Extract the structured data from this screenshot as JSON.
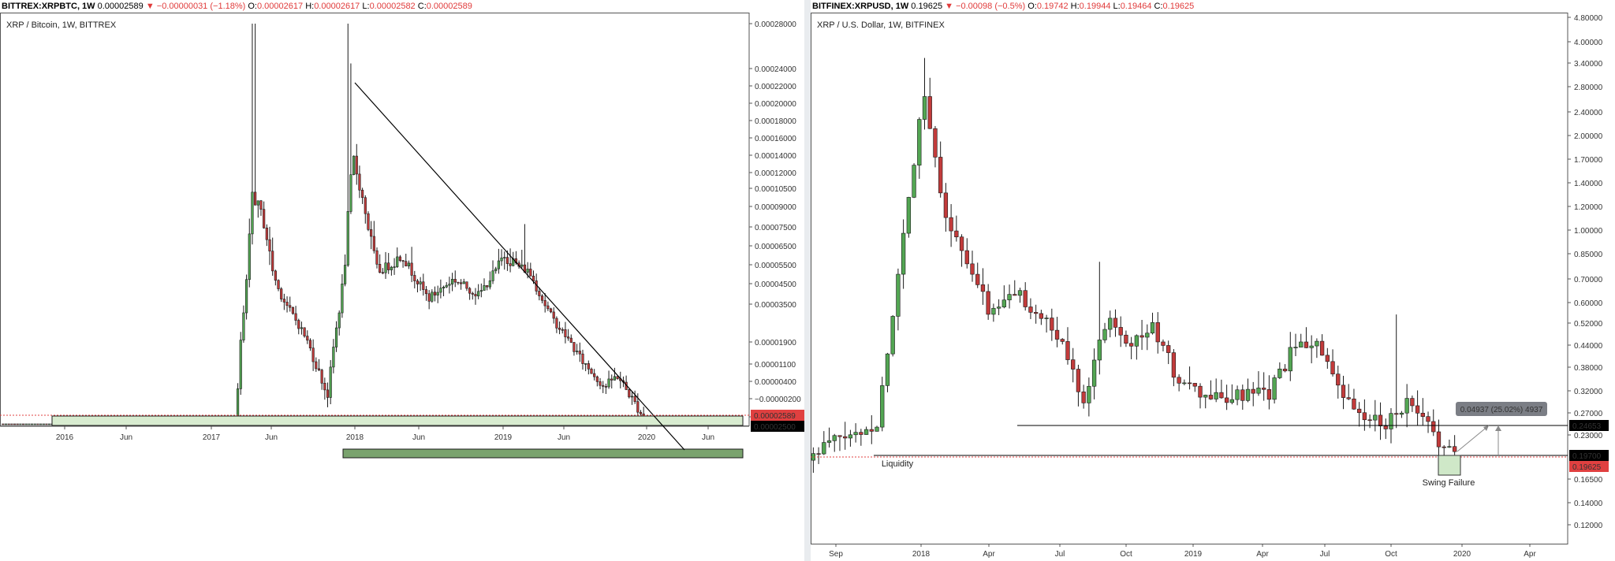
{
  "charts": [
    {
      "header": {
        "symbol": "BITTREX:XRPBTC, 1W",
        "last": "0.00002589",
        "arrow": "▼",
        "change": "−0.00000031 (−1.18%)",
        "o_label": "O:",
        "o": "0.00002617",
        "h_label": "H:",
        "h": "0.00002617",
        "l_label": "L:",
        "l": "0.00002582",
        "c_label": "C:",
        "c": "0.00002589"
      },
      "subtitle": "XRP / Bitcoin, 1W, BITTREX",
      "price_labels": [
        {
          "text": "0.00002589",
          "value": 2.589e-05,
          "color": "#e04040"
        },
        {
          "text": "0.00002500",
          "value": 2.5e-05,
          "color": "#000000"
        }
      ]
    },
    {
      "header": {
        "symbol": "BITFINEX:XRPUSD, 1W",
        "last": "0.19625",
        "arrow": "▼",
        "change": "−0.00098 (−0.5%)",
        "o_label": "O:",
        "o": "0.19742",
        "h_label": "H:",
        "h": "0.19944",
        "l_label": "L:",
        "l": "0.19464",
        "c_label": "C:",
        "c": "0.19625"
      },
      "subtitle": "XRP / U.S. Dollar, 1W, BITFINEX",
      "price_labels": [
        {
          "text": "0.24653",
          "value": 0.24653,
          "color": "#000000"
        },
        {
          "text": "0.19700",
          "value": 0.197,
          "color": "#000000"
        },
        {
          "text": "0.19625",
          "value": 0.19625,
          "color": "#e04040"
        }
      ],
      "annotations": {
        "liquidity": "Liquidity",
        "swing_failure": "Swing Failure",
        "measure": "0.04937 (25.02%) 4937"
      }
    }
  ],
  "chart_data": [
    {
      "type": "candlestick",
      "title": "XRP / Bitcoin, 1W, BITTREX",
      "y_scale": "log",
      "y_ticks": [
        "0.00028000",
        "0.00024000",
        "0.00022000",
        "0.00020000",
        "0.00018000",
        "0.00016000",
        "0.00014000",
        "0.00012000",
        "0.00010500",
        "0.00009000",
        "0.00007500",
        "0.00006500",
        "0.00005500",
        "0.00004500",
        "0.00003500",
        "0.00001900",
        "0.00001100",
        "0.00000400",
        "−0.00000200",
        "−0.00000800"
      ],
      "x_ticks": [
        "2016",
        "Jun",
        "2017",
        "Jun",
        "2018",
        "Jun",
        "2019",
        "Jun",
        "2020",
        "Jun"
      ],
      "approx_path": [
        [
          "2015-09",
          9e-06
        ],
        [
          "2015-11",
          8e-06
        ],
        [
          "2016-01",
          8.5e-06
        ],
        [
          "2016-03",
          9e-06
        ],
        [
          "2016-05",
          7e-06
        ],
        [
          "2016-07",
          6.8e-06
        ],
        [
          "2016-09",
          7e-06
        ],
        [
          "2016-11",
          6.8e-06
        ],
        [
          "2017-01",
          6.6e-06
        ],
        [
          "2017-03",
          6.2e-06
        ],
        [
          "2017-04",
          4e-05
        ],
        [
          "2017-05",
          0.00013
        ],
        [
          "2017-06",
          0.00011
        ],
        [
          "2017-07",
          7.5e-05
        ],
        [
          "2017-09",
          5e-05
        ],
        [
          "2017-11",
          3e-05
        ],
        [
          "2017-12",
          6.5e-05
        ],
        [
          "2018-01",
          0.00016
        ],
        [
          "2018-03",
          8.5e-05
        ],
        [
          "2018-05",
          9.5e-05
        ],
        [
          "2018-07",
          6.8e-05
        ],
        [
          "2018-09",
          8e-05
        ],
        [
          "2018-11",
          7e-05
        ],
        [
          "2019-01",
          9.5e-05
        ],
        [
          "2019-03",
          8.5e-05
        ],
        [
          "2019-05",
          5.5e-05
        ],
        [
          "2019-07",
          4e-05
        ],
        [
          "2019-09",
          3.2e-05
        ],
        [
          "2019-10",
          3.5e-05
        ],
        [
          "2019-12",
          2.59e-05
        ]
      ],
      "zones": [
        {
          "from": 2.1e-05,
          "to": 2.5e-05,
          "color": "light green"
        },
        {
          "from": 1.1e-05,
          "to": 1.3e-05,
          "color": "dark green"
        }
      ],
      "trendline": {
        "from": [
          "2018-01",
          0.00022
        ],
        "to": [
          "2020-04",
          1.3e-05
        ]
      },
      "last_price": 2.589e-05
    },
    {
      "type": "candlestick",
      "title": "XRP / U.S. Dollar, 1W, BITFINEX",
      "y_scale": "log",
      "y_ticks": [
        "4.80000",
        "4.00000",
        "3.40000",
        "2.80000",
        "2.40000",
        "2.00000",
        "1.70000",
        "1.40000",
        "1.20000",
        "1.00000",
        "0.85000",
        "0.70000",
        "0.60000",
        "0.52000",
        "0.44000",
        "0.38000",
        "0.32000",
        "0.27000",
        "0.23000",
        "0.16500",
        "0.14000",
        "0.12000"
      ],
      "x_ticks": [
        "Sep",
        "2018",
        "Apr",
        "Jul",
        "Oct",
        "2019",
        "Apr",
        "Jul",
        "Oct",
        "2020",
        "Apr"
      ],
      "approx_path": [
        [
          "2017-08",
          0.19
        ],
        [
          "2017-09",
          0.22
        ],
        [
          "2017-10",
          0.23
        ],
        [
          "2017-11",
          0.25
        ],
        [
          "2017-12",
          0.8
        ],
        [
          "2018-01",
          2.8
        ],
        [
          "2018-02",
          1.1
        ],
        [
          "2018-03",
          0.75
        ],
        [
          "2018-04",
          0.55
        ],
        [
          "2018-05",
          0.65
        ],
        [
          "2018-06",
          0.55
        ],
        [
          "2018-07",
          0.45
        ],
        [
          "2018-08",
          0.3
        ],
        [
          "2018-09",
          0.55
        ],
        [
          "2018-10",
          0.45
        ],
        [
          "2018-11",
          0.5
        ],
        [
          "2018-12",
          0.35
        ],
        [
          "2019-01",
          0.31
        ],
        [
          "2019-02",
          0.3
        ],
        [
          "2019-03",
          0.31
        ],
        [
          "2019-04",
          0.31
        ],
        [
          "2019-05",
          0.42
        ],
        [
          "2019-06",
          0.46
        ],
        [
          "2019-07",
          0.32
        ],
        [
          "2019-08",
          0.26
        ],
        [
          "2019-09",
          0.25
        ],
        [
          "2019-10",
          0.29
        ],
        [
          "2019-11",
          0.24
        ],
        [
          "2019-12",
          0.196
        ]
      ],
      "levels": [
        {
          "value": 0.24653,
          "label": "0.24653"
        },
        {
          "value": 0.197,
          "label": "0.19700"
        }
      ],
      "last_price": 0.19625
    }
  ]
}
